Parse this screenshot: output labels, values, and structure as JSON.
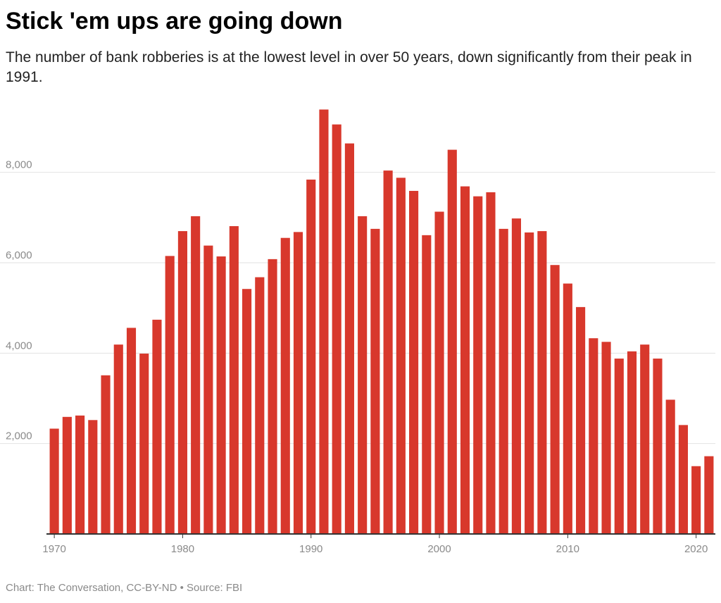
{
  "header": {
    "title": "Stick 'em ups are going down",
    "subtitle": "The number of bank robberies is at the lowest level in over 50 years, down significantly from their peak in 1991."
  },
  "footer": {
    "source_text": "Chart: The Conversation, CC-BY-ND • Source: FBI"
  },
  "colors": {
    "bar": "#d8382c",
    "grid": "#e2e2e2",
    "axis": "#333333",
    "tick_text": "#8a8a8a"
  },
  "chart_data": {
    "type": "bar",
    "title": "Stick 'em ups are going down",
    "xlabel": "",
    "ylabel": "",
    "x": [
      1970,
      1971,
      1972,
      1973,
      1974,
      1975,
      1976,
      1977,
      1978,
      1979,
      1980,
      1981,
      1982,
      1983,
      1984,
      1985,
      1986,
      1987,
      1988,
      1989,
      1990,
      1991,
      1992,
      1993,
      1994,
      1995,
      1996,
      1997,
      1998,
      1999,
      2000,
      2001,
      2002,
      2003,
      2004,
      2005,
      2006,
      2007,
      2008,
      2009,
      2010,
      2011,
      2012,
      2013,
      2014,
      2015,
      2016,
      2017,
      2018,
      2019,
      2020,
      2021
    ],
    "values": [
      2330,
      2590,
      2620,
      2520,
      3510,
      4190,
      4560,
      3990,
      4740,
      6150,
      6700,
      7030,
      6380,
      6140,
      6810,
      5420,
      5680,
      6080,
      6550,
      6680,
      7840,
      9390,
      9060,
      8640,
      7030,
      6750,
      8040,
      7880,
      7590,
      6610,
      7130,
      8500,
      7690,
      7470,
      7560,
      6750,
      6980,
      6670,
      6700,
      5950,
      5540,
      5020,
      4330,
      4250,
      3880,
      4040,
      4190,
      3880,
      2970,
      2410,
      1500,
      1720
    ],
    "ylim": [
      0,
      9600
    ],
    "yticks": [
      2000,
      4000,
      6000,
      8000
    ],
    "ytick_labels": [
      "2,000",
      "4,000",
      "6,000",
      "8,000"
    ],
    "xticks": [
      1970,
      1980,
      1990,
      2000,
      2010,
      2020
    ],
    "xtick_labels": [
      "1970",
      "1980",
      "1990",
      "2000",
      "2010",
      "2020"
    ],
    "grid": true,
    "legend": "none"
  }
}
